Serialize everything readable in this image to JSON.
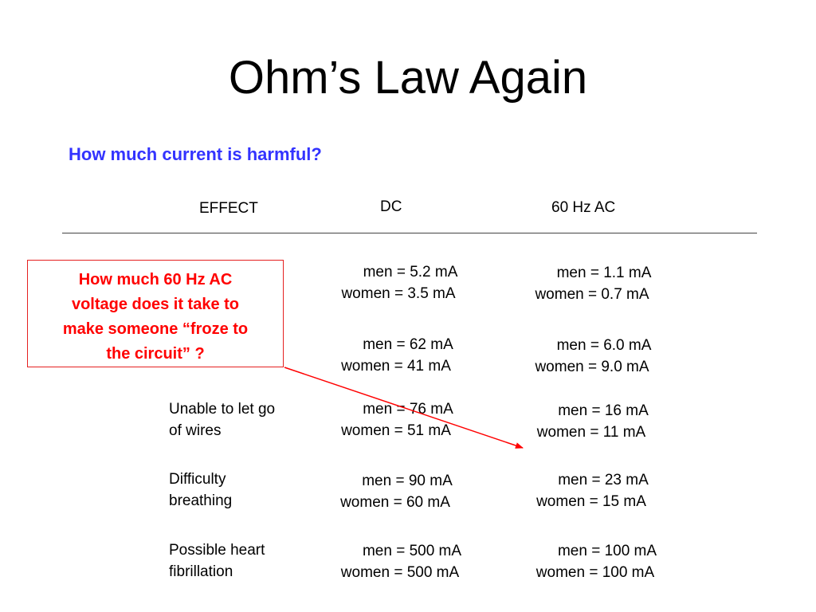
{
  "title": "Ohm’s Law Again",
  "subtitle": "How much current is harmful?",
  "headers": {
    "effect": "EFFECT",
    "dc": "DC",
    "ac": "60 Hz AC"
  },
  "callout": {
    "lines": [
      "How much 60 Hz AC",
      "voltage does it take to",
      "make someone “froze to",
      "the circuit” ?"
    ],
    "color": "#ff0000"
  },
  "rows": [
    {
      "effect": [
        "",
        ""
      ],
      "dc": {
        "men": "men = 5.2 mA",
        "women": "women = 3.5 mA"
      },
      "ac": {
        "men": "men = 1.1 mA",
        "women": "women = 0.7 mA"
      }
    },
    {
      "effect": [
        "",
        ""
      ],
      "dc": {
        "men": "men = 62 mA",
        "women": "women = 41 mA"
      },
      "ac": {
        "men": "men = 6.0 mA",
        "women": "women = 9.0 mA"
      }
    },
    {
      "effect": [
        "Unable to let go",
        "of wires"
      ],
      "dc": {
        "men": "men = 76 mA",
        "women": "women = 51 mA"
      },
      "ac": {
        "men": "men = 16 mA",
        "women": "women = 11 mA"
      }
    },
    {
      "effect": [
        "Difficulty",
        "breathing"
      ],
      "dc": {
        "men": "men = 90 mA",
        "women": "women = 60 mA"
      },
      "ac": {
        "men": "men = 23 mA",
        "women": "women = 15 mA"
      }
    },
    {
      "effect": [
        "Possible heart",
        "fibrillation"
      ],
      "dc": {
        "men": "men = 500 mA",
        "women": "women = 500 mA"
      },
      "ac": {
        "men": "men = 100 mA",
        "women": "women = 100 mA"
      }
    }
  ],
  "colors": {
    "subtitle": "#3333ff",
    "callout": "#ff0000",
    "arrow": "#ff0000"
  }
}
